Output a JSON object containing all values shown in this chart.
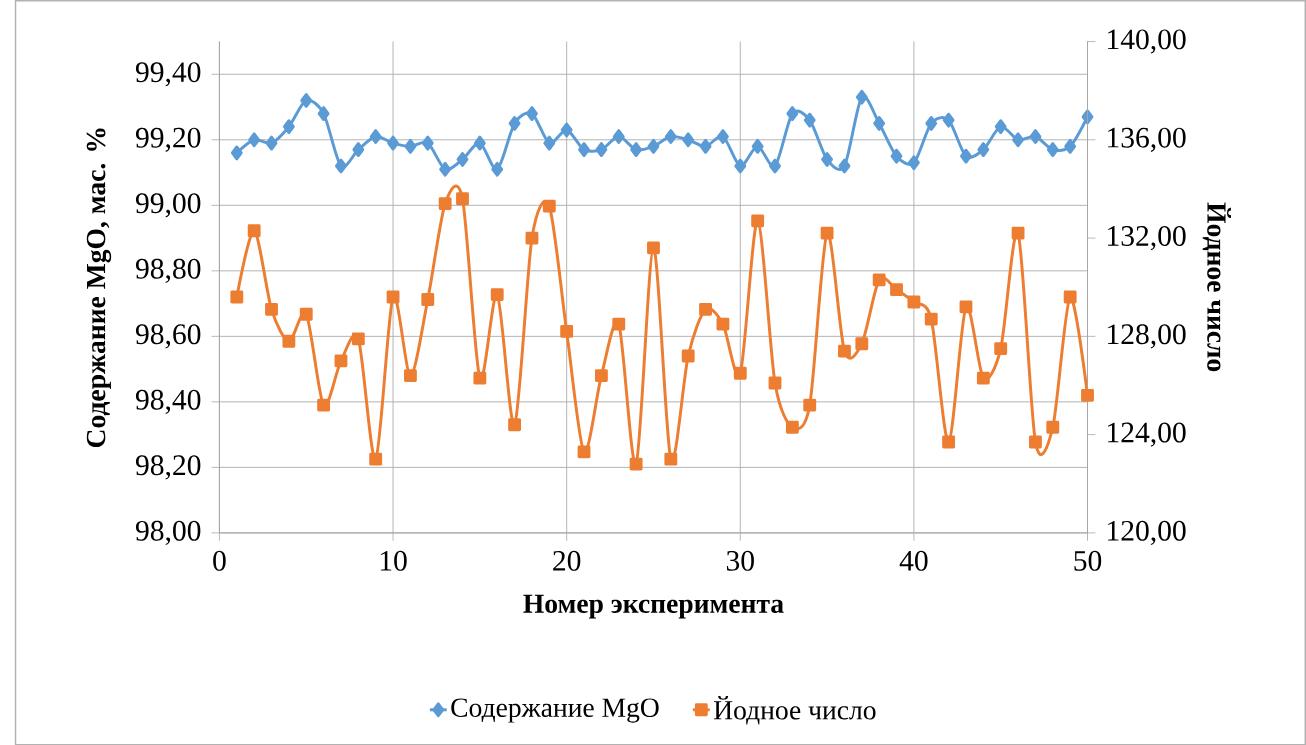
{
  "chart_data": {
    "type": "line",
    "xlabel": "Номер эксперимента",
    "ylabel": "Содержание MgO, мас. %",
    "y2label": "Йодное число",
    "x": [
      1,
      2,
      3,
      4,
      5,
      6,
      7,
      8,
      9,
      10,
      11,
      12,
      13,
      14,
      15,
      16,
      17,
      18,
      19,
      20,
      21,
      22,
      23,
      24,
      25,
      26,
      27,
      28,
      29,
      30,
      31,
      32,
      33,
      34,
      35,
      36,
      37,
      38,
      39,
      40,
      41,
      42,
      43,
      44,
      45,
      46,
      47,
      48,
      49,
      50
    ],
    "series": [
      {
        "name": "Содержание MgO",
        "color": "#5b9bd5",
        "marker": "diamond",
        "values": [
          99.16,
          99.2,
          99.19,
          99.24,
          99.32,
          99.28,
          99.12,
          99.17,
          99.21,
          99.19,
          99.18,
          99.19,
          99.11,
          99.14,
          99.19,
          99.11,
          99.25,
          99.28,
          99.19,
          99.23,
          99.17,
          99.17,
          99.21,
          99.17,
          99.18,
          99.21,
          99.2,
          99.18,
          99.21,
          99.12,
          99.18,
          99.12,
          99.28,
          99.26,
          99.14,
          99.12,
          99.33,
          99.25,
          99.15,
          99.13,
          99.25,
          99.26,
          99.15,
          99.17,
          99.24,
          99.2,
          99.21,
          99.17,
          99.18,
          99.27
        ]
      },
      {
        "name": "Йодное число",
        "color": "#ed7d31",
        "marker": "square",
        "axis": "y2",
        "values": [
          129.6,
          132.3,
          129.1,
          127.8,
          128.9,
          125.2,
          127.0,
          127.9,
          123.0,
          129.6,
          126.4,
          129.5,
          133.4,
          133.6,
          126.3,
          129.7,
          124.4,
          132.0,
          133.3,
          128.2,
          123.3,
          126.4,
          128.5,
          122.8,
          131.6,
          123.0,
          127.2,
          129.1,
          128.5,
          126.5,
          132.7,
          126.1,
          124.3,
          125.2,
          132.2,
          127.4,
          127.7,
          130.3,
          129.9,
          129.4,
          128.7,
          123.7,
          129.2,
          126.3,
          127.5,
          132.2,
          123.7,
          124.3,
          129.6,
          125.6
        ]
      }
    ],
    "xlim": [
      0,
      50
    ],
    "xticks": [
      0,
      10,
      20,
      30,
      40,
      50
    ],
    "ylim": [
      98,
      99.5
    ],
    "yticks": [
      {
        "value": 98.0,
        "label": "98,00"
      },
      {
        "value": 98.2,
        "label": "98,20"
      },
      {
        "value": 98.4,
        "label": "98,40"
      },
      {
        "value": 98.6,
        "label": "98,60"
      },
      {
        "value": 98.8,
        "label": "98,80"
      },
      {
        "value": 99.0,
        "label": "99,00"
      },
      {
        "value": 99.2,
        "label": "99,20"
      },
      {
        "value": 99.4,
        "label": "99,40"
      }
    ],
    "y2lim": [
      120,
      140
    ],
    "y2ticks": [
      {
        "value": 120,
        "label": "120,00"
      },
      {
        "value": 124,
        "label": "124,00"
      },
      {
        "value": 128,
        "label": "128,00"
      },
      {
        "value": 132,
        "label": "132,00"
      },
      {
        "value": 136,
        "label": "136,00"
      },
      {
        "value": 140,
        "label": "140,00"
      }
    ],
    "grid": true,
    "legend": "bottom"
  }
}
